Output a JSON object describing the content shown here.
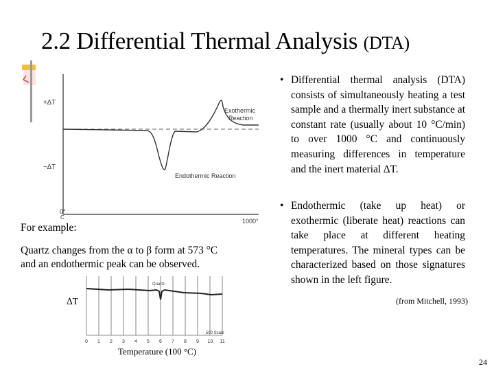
{
  "slide": {
    "title_main": "2.2 Differential Thermal Analysis ",
    "title_abbr": "(DTA)",
    "page_number": "24",
    "reference": "(from Mitchell, 1993)"
  },
  "bullets": [
    {
      "symbol": "•",
      "text": "Differential thermal analysis (DTA) consists of simultaneously heating a test sample and a thermally inert substance at constant rate (usually about 10 °C/min) to over 1000 °C and continuously measuring differences in temperature and the inert material ∆T."
    },
    {
      "symbol": "•",
      "text": "Endothermic (take up heat) or exothermic (liberate heat) reactions can take place at different heating temperatures. The mineral types can be characterized based on those signatures shown in the left figure."
    }
  ],
  "example": {
    "heading": "For example:",
    "line1": "Quartz changes from the α to β form at 573 °C",
    "line2": "and an endothermic peak can be observed.",
    "dt_label": "∆T",
    "temp_label": "Temperature (100 °C)"
  },
  "fig1": {
    "plus_dt": "+∆T",
    "minus_dt": "−∆T",
    "exo_label_1": "Exothermic",
    "exo_label_2": "Reaction",
    "endo_label": "Endothermic Reaction",
    "x_min": "0°",
    "x_min_unit": "C",
    "x_max": "1000°"
  },
  "fig2": {
    "peak_label": "Quartz",
    "scale_label": "500 Scale",
    "x_ticks": [
      "0",
      "1",
      "2",
      "3",
      "4",
      "5",
      "6",
      "7",
      "8",
      "9",
      "10",
      "11"
    ]
  },
  "colors": {
    "text": "#000000",
    "curve": "#333333",
    "deco_red": "#d04040",
    "deco_yellow": "#f0c040"
  }
}
